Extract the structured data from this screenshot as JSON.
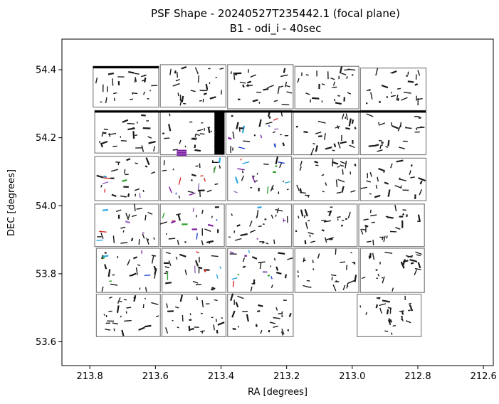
{
  "chart_data": {
    "type": "scatter",
    "title": "PSF Shape - 20240527T235442.1 (focal plane)",
    "subtitle": "B1 - odi_i - 40sec",
    "xlabel": "RA [degrees]",
    "ylabel": "DEC [degrees]",
    "x_inverted": true,
    "xlim": [
      213.885,
      212.57
    ],
    "ylim": [
      53.53,
      54.49
    ],
    "x_ticks": [
      {
        "value": 213.8,
        "label": "213.8"
      },
      {
        "value": 213.6,
        "label": "213.6"
      },
      {
        "value": 213.4,
        "label": "213.4"
      },
      {
        "value": 213.2,
        "label": "213.2"
      },
      {
        "value": 213.0,
        "label": "213.0"
      },
      {
        "value": 212.8,
        "label": "212.8"
      },
      {
        "value": 212.6,
        "label": "212.6"
      }
    ],
    "y_ticks": [
      {
        "value": 53.6,
        "label": "53.6"
      },
      {
        "value": 53.8,
        "label": "53.8"
      },
      {
        "value": 54.0,
        "label": "54.0"
      },
      {
        "value": 54.2,
        "label": "54.2"
      },
      {
        "value": 54.4,
        "label": "54.4"
      }
    ],
    "grid": false,
    "colors": {
      "cell_edge": "#808080",
      "whisker_dark": "#1a1a1a",
      "accents": [
        "#1f3fcf",
        "#2ca6e0",
        "#7b1fa2",
        "#2ca02c",
        "#d62728",
        "#9467bd"
      ]
    },
    "cells": [
      {
        "row": 1,
        "col": 1,
        "ra": [
          213.79,
          213.59
        ],
        "dec": [
          54.29,
          54.41
        ]
      },
      {
        "row": 1,
        "col": 2,
        "ra": [
          213.585,
          213.385
        ],
        "dec": [
          54.29,
          54.415
        ]
      },
      {
        "row": 1,
        "col": 3,
        "ra": [
          213.38,
          213.18
        ],
        "dec": [
          54.285,
          54.415
        ]
      },
      {
        "row": 1,
        "col": 4,
        "ra": [
          213.175,
          212.98
        ],
        "dec": [
          54.285,
          54.41
        ]
      },
      {
        "row": 1,
        "col": 5,
        "ra": [
          212.975,
          212.775
        ],
        "dec": [
          54.28,
          54.405
        ]
      },
      {
        "row": 2,
        "col": 1,
        "ra": [
          213.785,
          213.59
        ],
        "dec": [
          54.155,
          54.28
        ]
      },
      {
        "row": 2,
        "col": 2,
        "ra": [
          213.585,
          213.39
        ],
        "dec": [
          54.15,
          54.28
        ]
      },
      {
        "row": 2,
        "col": 3,
        "ra": [
          213.385,
          213.185
        ],
        "dec": [
          54.15,
          54.28
        ]
      },
      {
        "row": 2,
        "col": 4,
        "ra": [
          213.18,
          212.98
        ],
        "dec": [
          54.15,
          54.275
        ]
      },
      {
        "row": 2,
        "col": 5,
        "ra": [
          212.975,
          212.775
        ],
        "dec": [
          54.15,
          54.275
        ]
      },
      {
        "row": 3,
        "col": 1,
        "ra": [
          213.785,
          213.59
        ],
        "dec": [
          54.015,
          54.145
        ]
      },
      {
        "row": 3,
        "col": 2,
        "ra": [
          213.585,
          213.385
        ],
        "dec": [
          54.015,
          54.145
        ]
      },
      {
        "row": 3,
        "col": 3,
        "ra": [
          213.38,
          213.185
        ],
        "dec": [
          54.015,
          54.145
        ]
      },
      {
        "row": 3,
        "col": 4,
        "ra": [
          213.18,
          212.98
        ],
        "dec": [
          54.015,
          54.14
        ]
      },
      {
        "row": 3,
        "col": 5,
        "ra": [
          212.975,
          212.775
        ],
        "dec": [
          54.015,
          54.14
        ]
      },
      {
        "row": 4,
        "col": 1,
        "ra": [
          213.785,
          213.59
        ],
        "dec": [
          53.88,
          54.005
        ]
      },
      {
        "row": 4,
        "col": 2,
        "ra": [
          213.585,
          213.39
        ],
        "dec": [
          53.88,
          54.005
        ]
      },
      {
        "row": 4,
        "col": 3,
        "ra": [
          213.385,
          213.185
        ],
        "dec": [
          53.88,
          54.005
        ]
      },
      {
        "row": 4,
        "col": 4,
        "ra": [
          213.18,
          212.985
        ],
        "dec": [
          53.88,
          54.005
        ]
      },
      {
        "row": 4,
        "col": 5,
        "ra": [
          212.98,
          212.78
        ],
        "dec": [
          53.88,
          54.005
        ]
      },
      {
        "row": 5,
        "col": 1,
        "ra": [
          213.78,
          213.585
        ],
        "dec": [
          53.745,
          53.875
        ]
      },
      {
        "row": 5,
        "col": 2,
        "ra": [
          213.58,
          213.385
        ],
        "dec": [
          53.745,
          53.875
        ]
      },
      {
        "row": 5,
        "col": 3,
        "ra": [
          213.38,
          213.18
        ],
        "dec": [
          53.745,
          53.875
        ]
      },
      {
        "row": 5,
        "col": 4,
        "ra": [
          213.175,
          212.98
        ],
        "dec": [
          53.745,
          53.875
        ]
      },
      {
        "row": 5,
        "col": 5,
        "ra": [
          212.975,
          212.78
        ],
        "dec": [
          53.745,
          53.875
        ]
      },
      {
        "row": 6,
        "col": 1,
        "ra": [
          213.78,
          213.585
        ],
        "dec": [
          53.615,
          53.74
        ]
      },
      {
        "row": 6,
        "col": 2,
        "ra": [
          213.58,
          213.385
        ],
        "dec": [
          53.615,
          53.74
        ]
      },
      {
        "row": 6,
        "col": 3,
        "ra": [
          213.38,
          213.18
        ],
        "dec": [
          53.615,
          53.74
        ]
      },
      {
        "row": 6,
        "col": 5,
        "ra": [
          212.985,
          212.79
        ],
        "dec": [
          53.615,
          53.74
        ]
      }
    ],
    "whisker_density": 26
  }
}
